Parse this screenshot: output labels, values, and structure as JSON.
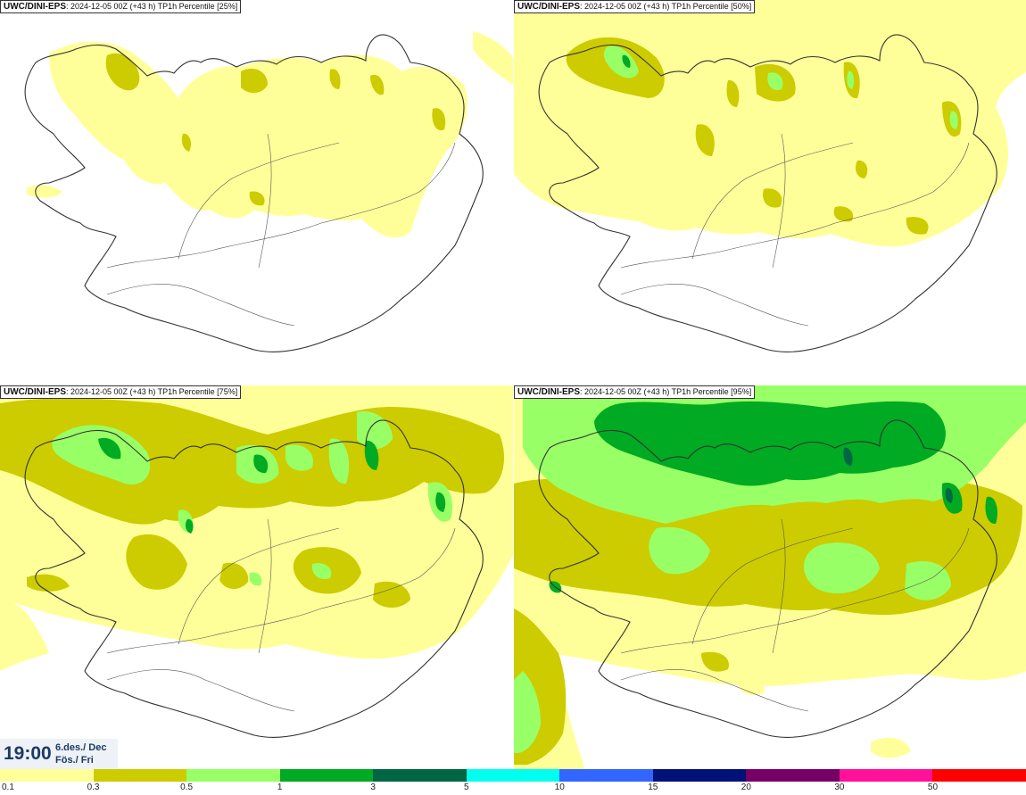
{
  "panels": [
    {
      "source": "UWC/DINI-EPS",
      "meta": ": 2024-12-05 00Z (+43 h) TP1h Percentile [25%]",
      "percentile": 25
    },
    {
      "source": "UWC/DINI-EPS",
      "meta": ": 2024-12-05 00Z (+43 h) TP1h Percentile [50%]",
      "percentile": 50
    },
    {
      "source": "UWC/DINI-EPS",
      "meta": ": 2024-12-05 00Z (+43 h) TP1h Percentile [75%]",
      "percentile": 75
    },
    {
      "source": "UWC/DINI-EPS",
      "meta": ": 2024-12-05 00Z (+43 h) TP1h Percentile [95%]",
      "percentile": 95
    }
  ],
  "valid_time": {
    "time": "19:00",
    "date_line": "6.des./ Dec",
    "day_line": "Fös./ Fri"
  },
  "legend": {
    "ticks": [
      "0.1",
      "0.3",
      "0.5",
      "1",
      "3",
      "5",
      "10",
      "15",
      "20",
      "30",
      "50"
    ],
    "colors": [
      "#ffff99",
      "#cccc00",
      "#99ff66",
      "#00aa22",
      "#006644",
      "#00ffee",
      "#3366ff",
      "#001177",
      "#770066",
      "#ff1199",
      "#ff0000"
    ]
  },
  "palette": {
    "level1": "#ffff99",
    "level2": "#cccc00",
    "level3": "#99ff66",
    "level4": "#00aa22",
    "level5": "#006644",
    "coast": "#333333",
    "roads": "#555555"
  }
}
